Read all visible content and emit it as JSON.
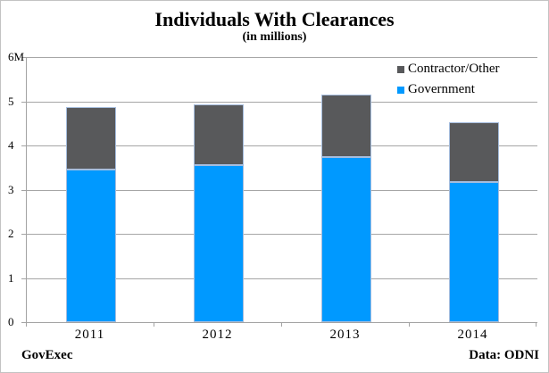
{
  "footer": {
    "left": "GovExec",
    "right": "Data: ODNI"
  },
  "colors": {
    "government_blue": "#0099ff",
    "contractor_gray": "#58595b",
    "bar_border": "#a5bdde",
    "gridline": "#a6a6a6",
    "axis": "#a3a3a3",
    "frame_border": "#c3c3c3",
    "background": "#ffffff",
    "text": "#000000"
  },
  "chart_data": {
    "type": "bar",
    "stacked": true,
    "title": "Individuals With Clearances",
    "subtitle": "(in millions)",
    "categories": [
      "2011",
      "2012",
      "2013",
      "2014"
    ],
    "series": [
      {
        "name": "Government",
        "color": "#0099ff",
        "values": [
          3.46,
          3.55,
          3.74,
          3.17
        ]
      },
      {
        "name": "Contractor/Other",
        "color": "#58595b",
        "values": [
          1.41,
          1.37,
          1.41,
          1.35
        ]
      }
    ],
    "totals": [
      4.87,
      4.92,
      5.15,
      4.52
    ],
    "xlabel": "",
    "ylabel": "",
    "ylim": [
      0,
      6
    ],
    "yticks": [
      "0",
      "1",
      "2",
      "3",
      "4",
      "5",
      "6M"
    ],
    "grid": true,
    "legend_position": "top-right-inside"
  }
}
